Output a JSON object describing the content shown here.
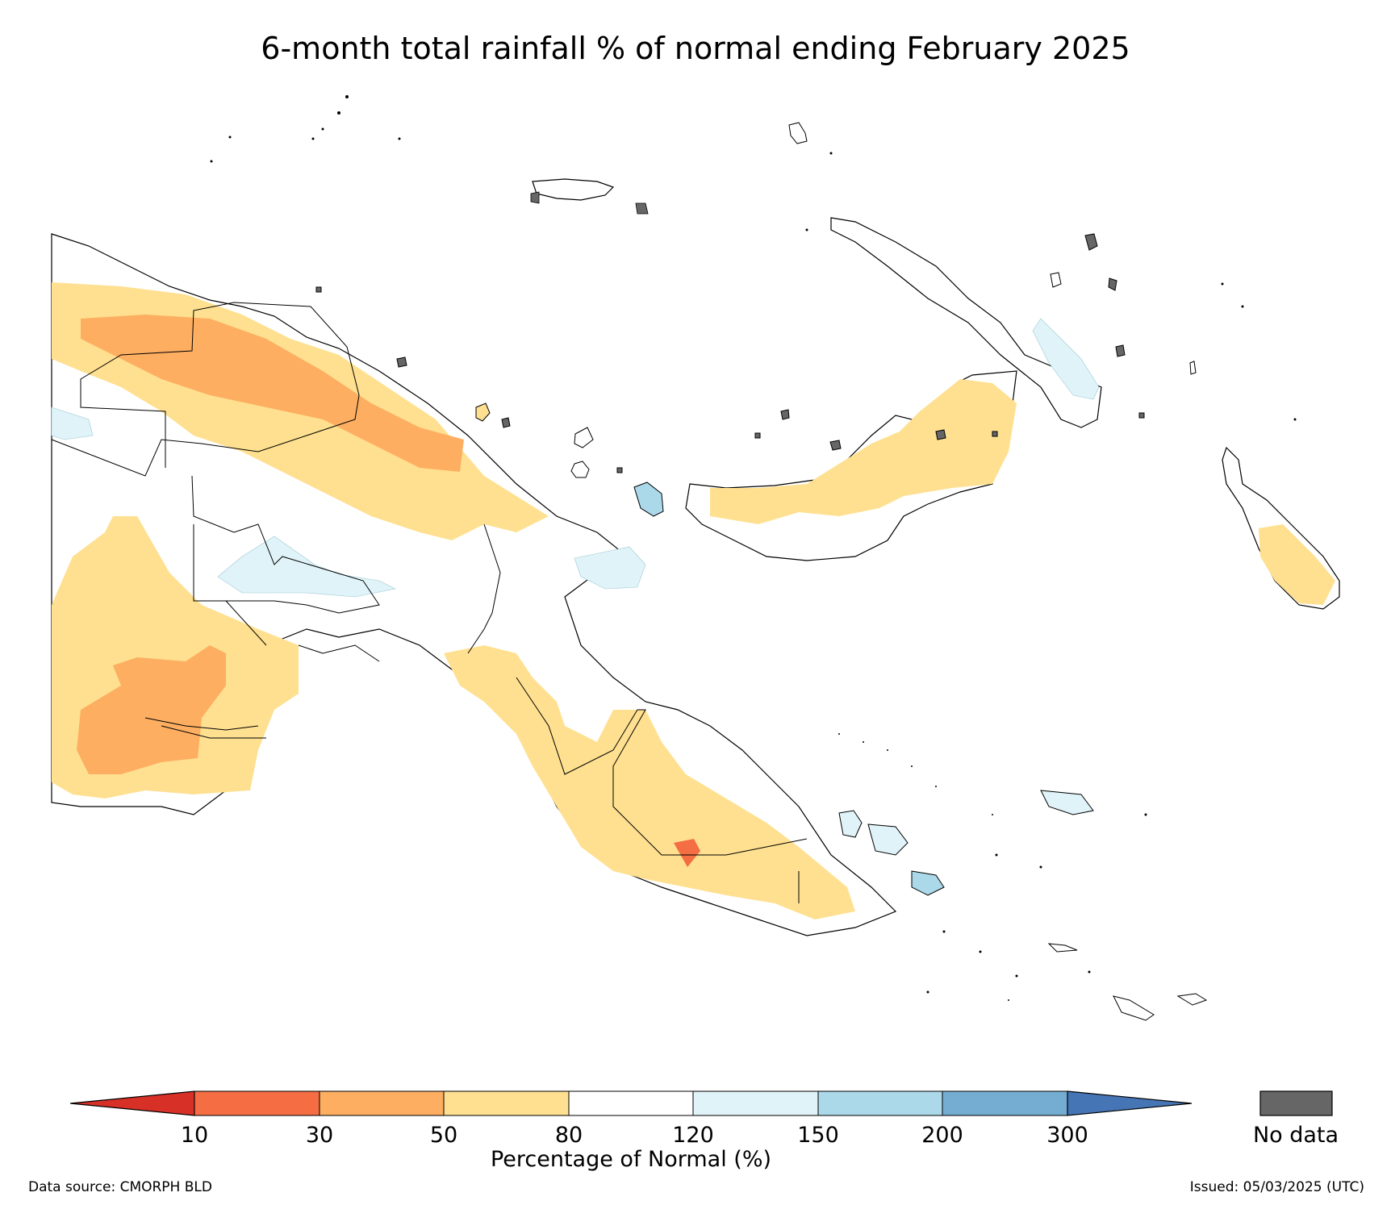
{
  "title": "6-month total rainfall % of normal ending February 2025",
  "legend": {
    "title": "Percentage of Normal (%)",
    "ticks": [
      "10",
      "30",
      "50",
      "80",
      "120",
      "150",
      "200",
      "300"
    ],
    "bins": [
      {
        "range": "<10",
        "color": "#d73027"
      },
      {
        "range": "10-30",
        "color": "#f46d43"
      },
      {
        "range": "30-50",
        "color": "#fdae61"
      },
      {
        "range": "50-80",
        "color": "#fee090"
      },
      {
        "range": "80-120",
        "color": "#ffffff"
      },
      {
        "range": "120-150",
        "color": "#e0f3f8"
      },
      {
        "range": "150-200",
        "color": "#abd9e9"
      },
      {
        "range": "200-300",
        "color": "#74add1"
      },
      {
        "range": ">300",
        "color": "#4575b4"
      }
    ],
    "no_data_label": "No data",
    "no_data_color": "#666666"
  },
  "footer": {
    "data_source": "Data source: CMORPH BLD",
    "issued": "Issued: 05/03/2025 (UTC)"
  }
}
